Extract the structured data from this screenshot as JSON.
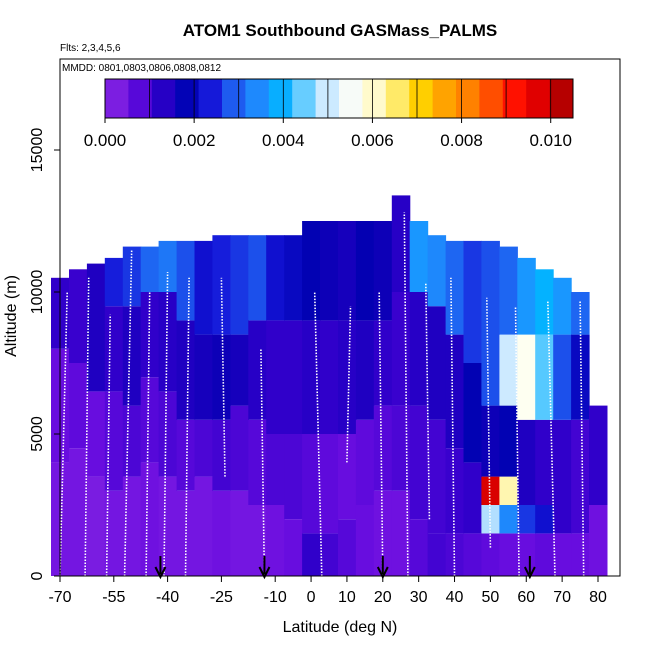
{
  "chart_data": {
    "type": "heatmap",
    "title": "ATOM1 Southbound GASMass_PALMS",
    "subtitle_flights": "Flts: 2,3,4,5,6",
    "subtitle_dates": "MMDD: 0801,0803,0806,0808,0812",
    "xlabel": "Latitude (deg N)",
    "ylabel": "Altitude (m)",
    "xlim": [
      -70,
      84
    ],
    "ylim": [
      0,
      17500
    ],
    "x_ticks": [
      -70,
      -55,
      -40,
      -25,
      -10,
      0,
      10,
      20,
      30,
      40,
      50,
      60,
      70,
      80
    ],
    "y_ticks": [
      0,
      5000,
      10000,
      15000
    ],
    "colorbar": {
      "min": 0.0,
      "max": 0.0105,
      "ticks": [
        "0.000",
        "0.002",
        "0.004",
        "0.006",
        "0.008",
        "0.010"
      ],
      "tick_values": [
        0.0,
        0.002,
        0.004,
        0.006,
        0.008,
        0.01
      ],
      "colors": [
        "#8a2be2",
        "#6a0de0",
        "#3300cc",
        "#0000b0",
        "#1515d8",
        "#1e5ff0",
        "#1e90ff",
        "#00b8ff",
        "#9fd8ff",
        "#f0f8ff",
        "#fffff0",
        "#fff08a",
        "#ffd700",
        "#ffa500",
        "#ff7f00",
        "#ff4500",
        "#ff0000",
        "#d00000",
        "#a00000"
      ]
    },
    "arrow_latitudes": [
      -42,
      -13,
      20,
      61
    ],
    "columns": [
      {
        "lat": -70,
        "top": 10500,
        "cells": [
          [
            0,
            4000,
            0.0004
          ],
          [
            4000,
            8000,
            0.0006
          ],
          [
            8000,
            10500,
            0.0012
          ]
        ]
      },
      {
        "lat": -65,
        "top": 10800,
        "cells": [
          [
            0,
            4500,
            0.0004
          ],
          [
            4500,
            7500,
            0.0007
          ],
          [
            7500,
            10800,
            0.0011
          ]
        ]
      },
      {
        "lat": -60,
        "top": 11000,
        "cells": [
          [
            0,
            3500,
            0.0003
          ],
          [
            3500,
            6500,
            0.0006
          ],
          [
            6500,
            11000,
            0.0014
          ]
        ]
      },
      {
        "lat": -55,
        "top": 11200,
        "cells": [
          [
            0,
            3000,
            0.0004
          ],
          [
            3000,
            6500,
            0.0008
          ],
          [
            6500,
            9500,
            0.0012
          ],
          [
            9500,
            11200,
            0.0024
          ]
        ]
      },
      {
        "lat": -50,
        "top": 11600,
        "cells": [
          [
            0,
            3500,
            0.0004
          ],
          [
            3500,
            6000,
            0.0009
          ],
          [
            6000,
            9500,
            0.0014
          ],
          [
            9500,
            11600,
            0.0026
          ]
        ]
      },
      {
        "lat": -45,
        "top": 11600,
        "cells": [
          [
            0,
            4000,
            0.0005
          ],
          [
            4000,
            7000,
            0.0008
          ],
          [
            7000,
            10000,
            0.0012
          ],
          [
            10000,
            11600,
            0.003
          ]
        ]
      },
      {
        "lat": -40,
        "top": 11800,
        "cells": [
          [
            0,
            3500,
            0.0004
          ],
          [
            3500,
            6500,
            0.0009
          ],
          [
            6500,
            10000,
            0.0013
          ],
          [
            10000,
            11800,
            0.0032
          ]
        ]
      },
      {
        "lat": -35,
        "top": 11800,
        "cells": [
          [
            0,
            3000,
            0.0004
          ],
          [
            3000,
            5500,
            0.0008
          ],
          [
            5500,
            9000,
            0.0014
          ],
          [
            9000,
            11800,
            0.0028
          ]
        ]
      },
      {
        "lat": -30,
        "top": 11800,
        "cells": [
          [
            0,
            3500,
            0.0004
          ],
          [
            3500,
            5500,
            0.0009
          ],
          [
            5500,
            8500,
            0.0015
          ],
          [
            8500,
            11800,
            0.0022
          ]
        ]
      },
      {
        "lat": -25,
        "top": 12000,
        "cells": [
          [
            0,
            3000,
            0.0005
          ],
          [
            3000,
            5500,
            0.001
          ],
          [
            5500,
            8500,
            0.0016
          ],
          [
            8500,
            12000,
            0.0024
          ]
        ]
      },
      {
        "lat": -20,
        "top": 12000,
        "cells": [
          [
            0,
            3000,
            0.0004
          ],
          [
            3000,
            6000,
            0.0009
          ],
          [
            6000,
            8500,
            0.0015
          ],
          [
            8500,
            12000,
            0.0026
          ]
        ]
      },
      {
        "lat": -15,
        "top": 12000,
        "cells": [
          [
            0,
            2500,
            0.0004
          ],
          [
            2500,
            5500,
            0.0008
          ],
          [
            5500,
            9000,
            0.0013
          ],
          [
            9000,
            12000,
            0.0028
          ]
        ]
      },
      {
        "lat": -10,
        "top": 12000,
        "cells": [
          [
            0,
            2500,
            0.0005
          ],
          [
            2500,
            5000,
            0.0009
          ],
          [
            5000,
            9000,
            0.0012
          ],
          [
            9000,
            12000,
            0.0022
          ]
        ]
      },
      {
        "lat": -5,
        "top": 12000,
        "cells": [
          [
            0,
            2000,
            0.0006
          ],
          [
            2000,
            5000,
            0.0009
          ],
          [
            5000,
            9000,
            0.0012
          ],
          [
            9000,
            12000,
            0.002
          ]
        ]
      },
      {
        "lat": 0,
        "top": 12500,
        "cells": [
          [
            0,
            1500,
            0.0012
          ],
          [
            1500,
            5000,
            0.0008
          ],
          [
            5000,
            9000,
            0.0013
          ],
          [
            9000,
            12500,
            0.0018
          ]
        ]
      },
      {
        "lat": 5,
        "top": 12500,
        "cells": [
          [
            0,
            1500,
            0.001
          ],
          [
            1500,
            5000,
            0.0007
          ],
          [
            5000,
            9000,
            0.0012
          ],
          [
            9000,
            12500,
            0.0016
          ]
        ]
      },
      {
        "lat": 10,
        "top": 12500,
        "cells": [
          [
            0,
            2000,
            0.0008
          ],
          [
            2000,
            5000,
            0.0006
          ],
          [
            5000,
            9000,
            0.0013
          ],
          [
            9000,
            12500,
            0.0015
          ]
        ]
      },
      {
        "lat": 15,
        "top": 12500,
        "cells": [
          [
            0,
            2500,
            0.0006
          ],
          [
            2500,
            5500,
            0.0007
          ],
          [
            5500,
            9000,
            0.0014
          ],
          [
            9000,
            12500,
            0.0017
          ]
        ]
      },
      {
        "lat": 20,
        "top": 12500,
        "cells": [
          [
            0,
            3000,
            0.0005
          ],
          [
            3000,
            6000,
            0.0008
          ],
          [
            6000,
            9000,
            0.0012
          ],
          [
            9000,
            12500,
            0.0016
          ]
        ]
      },
      {
        "lat": 25,
        "top": 13400,
        "cells": [
          [
            0,
            3000,
            0.0005
          ],
          [
            3000,
            6000,
            0.0009
          ],
          [
            6000,
            10000,
            0.0011
          ],
          [
            10000,
            13400,
            0.0013
          ]
        ]
      },
      {
        "lat": 30,
        "top": 12500,
        "cells": [
          [
            0,
            2000,
            0.0008
          ],
          [
            2000,
            6000,
            0.001
          ],
          [
            6000,
            10000,
            0.0013
          ],
          [
            10000,
            12500,
            0.0036
          ]
        ]
      },
      {
        "lat": 35,
        "top": 12000,
        "cells": [
          [
            0,
            1500,
            0.001
          ],
          [
            1500,
            5500,
            0.001
          ],
          [
            5500,
            9500,
            0.0014
          ],
          [
            9500,
            12000,
            0.0034
          ]
        ]
      },
      {
        "lat": 40,
        "top": 11800,
        "cells": [
          [
            0,
            1500,
            0.0009
          ],
          [
            1500,
            4500,
            0.0011
          ],
          [
            4500,
            8500,
            0.0014
          ],
          [
            8500,
            11800,
            0.003
          ]
        ]
      },
      {
        "lat": 45,
        "top": 11800,
        "cells": [
          [
            0,
            1500,
            0.0008
          ],
          [
            1500,
            4000,
            0.0012
          ],
          [
            4000,
            7500,
            0.0018
          ],
          [
            7500,
            11800,
            0.0026
          ]
        ]
      },
      {
        "lat": 50,
        "top": 11800,
        "cells": [
          [
            0,
            1500,
            0.0007
          ],
          [
            1500,
            2500,
            0.0048
          ],
          [
            2500,
            3500,
            0.0098
          ],
          [
            3500,
            6000,
            0.0016
          ],
          [
            6000,
            11800,
            0.0028
          ]
        ]
      },
      {
        "lat": 55,
        "top": 11600,
        "cells": [
          [
            0,
            1500,
            0.0006
          ],
          [
            1500,
            2500,
            0.0034
          ],
          [
            2500,
            3500,
            0.0062
          ],
          [
            3500,
            6000,
            0.0018
          ],
          [
            6000,
            8500,
            0.005
          ],
          [
            8500,
            11600,
            0.003
          ]
        ]
      },
      {
        "lat": 60,
        "top": 11200,
        "cells": [
          [
            0,
            1500,
            0.0006
          ],
          [
            1500,
            2500,
            0.0026
          ],
          [
            2500,
            5500,
            0.0014
          ],
          [
            5500,
            8500,
            0.0058
          ],
          [
            8500,
            11200,
            0.0036
          ]
        ]
      },
      {
        "lat": 65,
        "top": 10800,
        "cells": [
          [
            0,
            1500,
            0.0007
          ],
          [
            1500,
            2500,
            0.0022
          ],
          [
            2500,
            5500,
            0.0012
          ],
          [
            5500,
            8500,
            0.0044
          ],
          [
            8500,
            10800,
            0.004
          ]
        ]
      },
      {
        "lat": 70,
        "top": 10500,
        "cells": [
          [
            0,
            1500,
            0.0006
          ],
          [
            1500,
            5500,
            0.0012
          ],
          [
            5500,
            8500,
            0.0028
          ],
          [
            8500,
            10500,
            0.0036
          ]
        ]
      },
      {
        "lat": 75,
        "top": 10000,
        "cells": [
          [
            0,
            1500,
            0.0006
          ],
          [
            1500,
            5500,
            0.001
          ],
          [
            5500,
            8500,
            0.002
          ],
          [
            8500,
            10000,
            0.003
          ]
        ]
      },
      {
        "lat": 80,
        "top": 6000,
        "cells": [
          [
            0,
            2500,
            0.0005
          ],
          [
            2500,
            6000,
            0.0012
          ]
        ]
      }
    ],
    "flight_tracks": [
      {
        "lat_start": -70,
        "alt_start": 0,
        "lat_end": -68,
        "alt_end": 10000
      },
      {
        "lat_start": -63,
        "alt_start": 0,
        "lat_end": -62,
        "alt_end": 10500
      },
      {
        "lat_start": -57,
        "alt_start": 0,
        "lat_end": -56,
        "alt_end": 9200
      },
      {
        "lat_start": -52,
        "alt_start": 0,
        "lat_end": -50,
        "alt_end": 11500
      },
      {
        "lat_start": -46,
        "alt_start": 0,
        "lat_end": -45,
        "alt_end": 10000
      },
      {
        "lat_start": -41,
        "alt_start": 0,
        "lat_end": -40,
        "alt_end": 10700
      },
      {
        "lat_start": -35,
        "alt_start": 0,
        "lat_end": -34,
        "alt_end": 10500
      },
      {
        "lat_start": -24,
        "alt_start": 3500,
        "lat_end": -25,
        "alt_end": 10500
      },
      {
        "lat_start": -13,
        "alt_start": 0,
        "lat_end": -14,
        "alt_end": 8000
      },
      {
        "lat_start": 3,
        "alt_start": 0,
        "lat_end": 1,
        "alt_end": 10000
      },
      {
        "lat_start": 10,
        "alt_start": 4000,
        "lat_end": 11,
        "alt_end": 9500
      },
      {
        "lat_start": 20,
        "alt_start": 0,
        "lat_end": 19,
        "alt_end": 10000
      },
      {
        "lat_start": 27,
        "alt_start": 0,
        "lat_end": 26,
        "alt_end": 12800
      },
      {
        "lat_start": 33,
        "alt_start": 2000,
        "lat_end": 32,
        "alt_end": 10300
      },
      {
        "lat_start": 40,
        "alt_start": 0,
        "lat_end": 39,
        "alt_end": 10500
      },
      {
        "lat_start": 50,
        "alt_start": 1000,
        "lat_end": 49,
        "alt_end": 9800
      },
      {
        "lat_start": 58,
        "alt_start": 0,
        "lat_end": 57,
        "alt_end": 9500
      },
      {
        "lat_start": 68,
        "alt_start": 0,
        "lat_end": 66,
        "alt_end": 9700
      },
      {
        "lat_start": 76,
        "alt_start": 0,
        "lat_end": 75,
        "alt_end": 9700
      }
    ]
  }
}
